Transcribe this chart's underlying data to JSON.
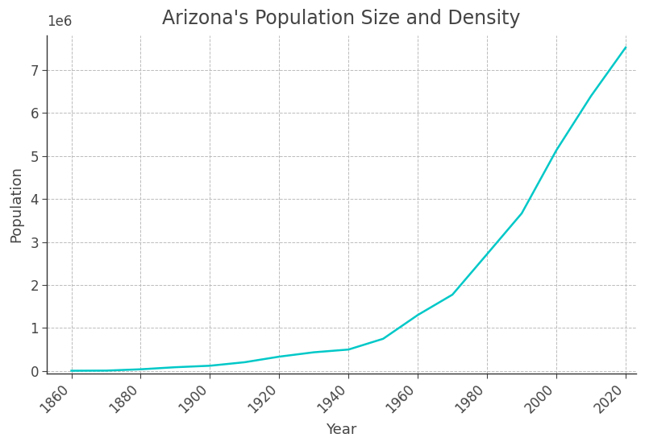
{
  "title": "Arizona's Population Size and Density",
  "xlabel": "Year",
  "ylabel": "Population",
  "line_color": "#00C8C8",
  "line_width": 1.8,
  "background_color": "#FFFFFF",
  "grid_color": "#BBBBBB",
  "grid_linestyle": "--",
  "years": [
    1860,
    1870,
    1880,
    1890,
    1900,
    1910,
    1920,
    1930,
    1940,
    1950,
    1960,
    1970,
    1980,
    1990,
    2000,
    2010,
    2020
  ],
  "population": [
    6482,
    9658,
    40440,
    88243,
    122931,
    204354,
    334162,
    435573,
    499261,
    749587,
    1302161,
    1775399,
    2718215,
    3665228,
    5130632,
    6392017,
    7519184
  ],
  "xlim": [
    1853,
    2023
  ],
  "ylim": [
    -50000,
    7800000
  ],
  "xticks": [
    1860,
    1880,
    1900,
    1920,
    1940,
    1960,
    1980,
    2000,
    2020
  ],
  "yticks": [
    0,
    1000000,
    2000000,
    3000000,
    4000000,
    5000000,
    6000000,
    7000000
  ],
  "title_fontsize": 17,
  "label_fontsize": 13,
  "tick_fontsize": 12,
  "tick_label_color": "#444444",
  "spine_color": "#333333"
}
